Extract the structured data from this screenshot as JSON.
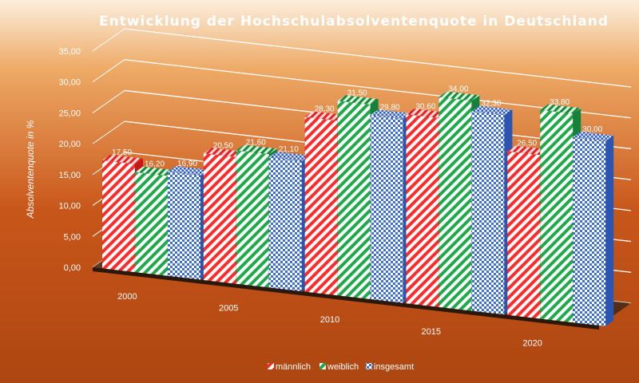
{
  "chart_data": {
    "type": "bar",
    "title": "Entwicklung  der  Hochschulabsolventenquote  in  Deutschland",
    "xlabel": "",
    "ylabel": "Absolventenquote in %",
    "categories": [
      "2000",
      "2005",
      "2010",
      "2015",
      "2020"
    ],
    "series": [
      {
        "name": "männlich",
        "values": [
          17.5,
          20.5,
          28.3,
          30.6,
          26.5
        ],
        "color": "#ff2a2a",
        "pattern": "diagonal-stripes"
      },
      {
        "name": "weiblich",
        "values": [
          16.2,
          21.6,
          31.5,
          34.0,
          33.8
        ],
        "color": "#1faa4a",
        "pattern": "diagonal-stripes"
      },
      {
        "name": "insgesamt",
        "values": [
          16.9,
          21.1,
          29.8,
          32.3,
          30.0
        ],
        "color": "#3e6fd8",
        "pattern": "checker"
      }
    ],
    "value_labels": [
      [
        "17,50",
        "20,50",
        "28,30",
        "30,60",
        "26,50"
      ],
      [
        "16,20",
        "21,60",
        "31,50",
        "34,00",
        "33,80"
      ],
      [
        "16,90",
        "21,10",
        "29,80",
        "32,30",
        "30,00"
      ]
    ],
    "ylim": [
      0,
      35
    ],
    "yticks": [
      "0,00",
      "5,00",
      "10,00",
      "15,00",
      "20,00",
      "25,00",
      "30,00",
      "35,00"
    ],
    "grid": true,
    "legend_position": "bottom",
    "background_gradient": [
      "#fbeedd",
      "#eeaa66",
      "#c8561a",
      "#ad4611"
    ]
  }
}
